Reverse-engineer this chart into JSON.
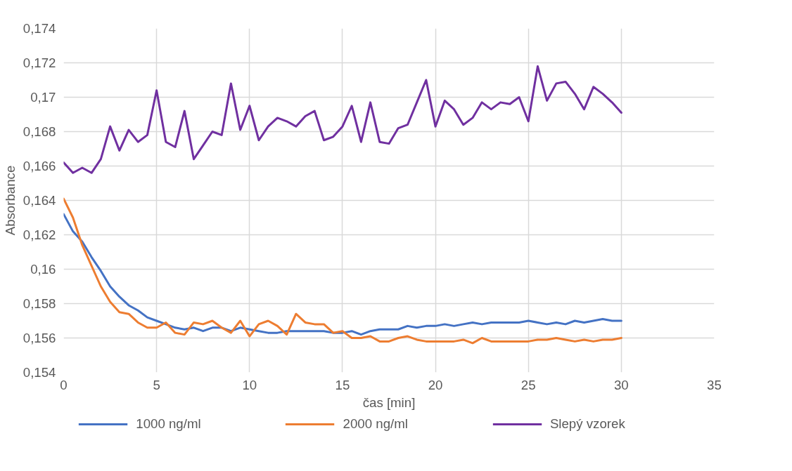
{
  "chart_data": {
    "type": "line",
    "xlabel": "čas [min]",
    "ylabel": "Absorbance",
    "x": [
      0,
      0.5,
      1,
      1.5,
      2,
      2.5,
      3,
      3.5,
      4,
      4.5,
      5,
      5.5,
      6,
      6.5,
      7,
      7.5,
      8,
      8.5,
      9,
      9.5,
      10,
      10.5,
      11,
      11.5,
      12,
      12.5,
      13,
      13.5,
      14,
      14.5,
      15,
      15.5,
      16,
      16.5,
      17,
      17.5,
      18,
      18.5,
      19,
      19.5,
      20,
      20.5,
      21,
      21.5,
      22,
      22.5,
      23,
      23.5,
      24,
      24.5,
      25,
      25.5,
      26,
      26.5,
      27,
      27.5,
      28,
      28.5,
      29,
      29.5,
      30
    ],
    "series": [
      {
        "name": "1000 ng/ml",
        "color": "#4472c4",
        "values": [
          0.1632,
          0.1622,
          0.1616,
          0.1607,
          0.1599,
          0.159,
          0.1584,
          0.1579,
          0.1576,
          0.1572,
          0.157,
          0.1568,
          0.1566,
          0.1565,
          0.1566,
          0.1564,
          0.1566,
          0.1566,
          0.1564,
          0.1566,
          0.1565,
          0.1564,
          0.1563,
          0.1563,
          0.1564,
          0.1564,
          0.1564,
          0.1564,
          0.1564,
          0.1563,
          0.1563,
          0.1564,
          0.1562,
          0.1564,
          0.1565,
          0.1565,
          0.1565,
          0.1567,
          0.1566,
          0.1567,
          0.1567,
          0.1568,
          0.1567,
          0.1568,
          0.1569,
          0.1568,
          0.1569,
          0.1569,
          0.1569,
          0.1569,
          0.157,
          0.1569,
          0.1568,
          0.1569,
          0.1568,
          0.157,
          0.1569,
          0.157,
          0.1571,
          0.157,
          0.157
        ]
      },
      {
        "name": "2000 ng/ml",
        "color": "#ed7d31",
        "values": [
          0.1641,
          0.163,
          0.1614,
          0.1602,
          0.159,
          0.1581,
          0.1575,
          0.1574,
          0.1569,
          0.1566,
          0.1566,
          0.1569,
          0.1563,
          0.1562,
          0.1569,
          0.1568,
          0.157,
          0.1566,
          0.1563,
          0.157,
          0.1561,
          0.1568,
          0.157,
          0.1567,
          0.1562,
          0.1574,
          0.1569,
          0.1568,
          0.1568,
          0.1563,
          0.1564,
          0.156,
          0.156,
          0.1561,
          0.1558,
          0.1558,
          0.156,
          0.1561,
          0.1559,
          0.1558,
          0.1558,
          0.1558,
          0.1558,
          0.1559,
          0.1557,
          0.156,
          0.1558,
          0.1558,
          0.1558,
          0.1558,
          0.1558,
          0.1559,
          0.1559,
          0.156,
          0.1559,
          0.1558,
          0.1559,
          0.1558,
          0.1559,
          0.1559,
          0.156
        ]
      },
      {
        "name": "Slepý vzorek",
        "color": "#7030a0",
        "values": [
          0.1662,
          0.1656,
          0.1659,
          0.1656,
          0.1664,
          0.1683,
          0.1669,
          0.1681,
          0.1674,
          0.1678,
          0.1704,
          0.1674,
          0.1671,
          0.1692,
          0.1664,
          0.1672,
          0.168,
          0.1678,
          0.1708,
          0.1681,
          0.1695,
          0.1675,
          0.1683,
          0.1688,
          0.1686,
          0.1683,
          0.1689,
          0.1692,
          0.1675,
          0.1677,
          0.1683,
          0.1695,
          0.1674,
          0.1697,
          0.1674,
          0.1673,
          0.1682,
          0.1684,
          0.1697,
          0.171,
          0.1683,
          0.1698,
          0.1693,
          0.1684,
          0.1688,
          0.1697,
          0.1693,
          0.1697,
          0.1696,
          0.17,
          0.1686,
          0.1718,
          0.1698,
          0.1708,
          0.1709,
          0.1702,
          0.1693,
          0.1706,
          0.1702,
          0.1697,
          0.1691
        ]
      }
    ],
    "xlim": [
      0,
      35
    ],
    "xticks": [
      0,
      5,
      10,
      15,
      20,
      25,
      30,
      35
    ],
    "ylim": [
      0.154,
      0.174
    ],
    "yticks": [
      {
        "value": 0.154,
        "label": "0,154"
      },
      {
        "value": 0.156,
        "label": "0,156"
      },
      {
        "value": 0.158,
        "label": "0,158"
      },
      {
        "value": 0.16,
        "label": "0,16"
      },
      {
        "value": 0.162,
        "label": "0,162"
      },
      {
        "value": 0.164,
        "label": "0,164"
      },
      {
        "value": 0.166,
        "label": "0,166"
      },
      {
        "value": 0.168,
        "label": "0,168"
      },
      {
        "value": 0.17,
        "label": "0,17"
      },
      {
        "value": 0.172,
        "label": "0,172"
      },
      {
        "value": 0.174,
        "label": "0,174"
      }
    ],
    "grid": true,
    "legend": "bottom",
    "marker": "none",
    "line_style": "solid"
  }
}
